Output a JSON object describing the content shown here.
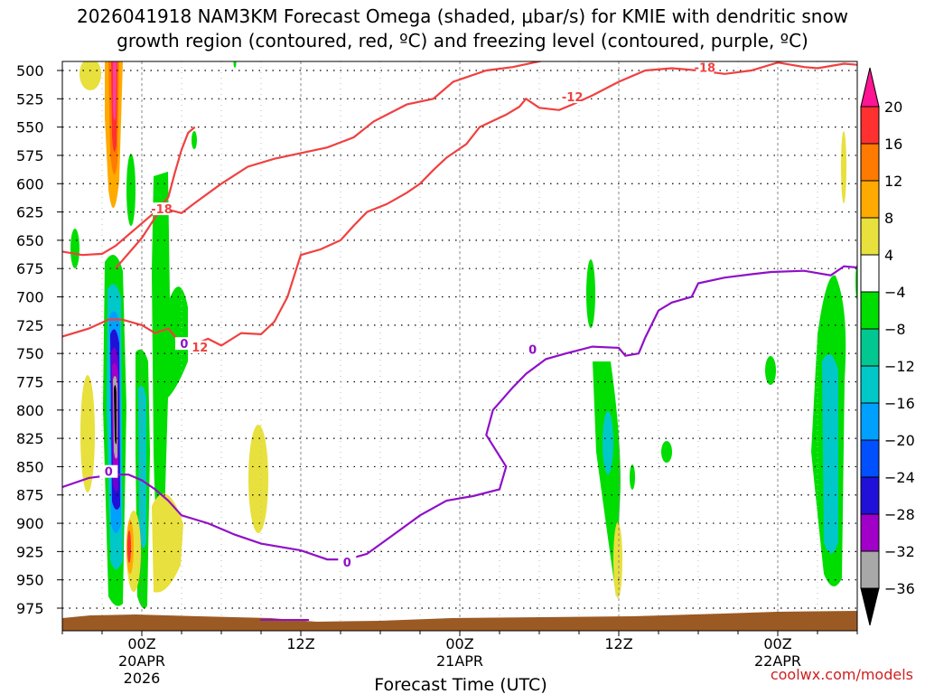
{
  "chart_data": {
    "type": "contour",
    "title_line1": "2026041918 NAM3KM Forecast Omega (shaded, μbar/s) for KMIE with dendritic snow",
    "title_line2": "growth region (contoured, red, ºC) and freezing level (contoured, purple, ºC)",
    "xlabel": "Forecast Time (UTC)",
    "brand": "coolwx.com/models",
    "y_axis": {
      "unit": "hPa",
      "ticks": [
        500,
        525,
        550,
        575,
        600,
        625,
        650,
        675,
        700,
        725,
        750,
        775,
        800,
        825,
        850,
        875,
        900,
        925,
        950,
        975
      ],
      "range": [
        500,
        985
      ]
    },
    "x_axis": {
      "unit": "hours from 2026-04-19 18Z",
      "range": [
        0,
        60
      ],
      "ticks": [
        {
          "hour": 6,
          "line1": "00Z",
          "line2": "20APR",
          "line3": "2026"
        },
        {
          "hour": 18,
          "line1": "12Z",
          "line2": "",
          "line3": ""
        },
        {
          "hour": 30,
          "line1": "00Z",
          "line2": "21APR",
          "line3": ""
        },
        {
          "hour": 42,
          "line1": "12Z",
          "line2": "",
          "line3": ""
        },
        {
          "hour": 54,
          "line1": "00Z",
          "line2": "22APR",
          "line3": ""
        }
      ]
    },
    "colorbar": {
      "labels": [
        "20",
        "16",
        "12",
        "8",
        "4",
        "−4",
        "−8",
        "−12",
        "−16",
        "−20",
        "−24",
        "−28",
        "−32",
        "−36"
      ],
      "colors": [
        "#e8ff00",
        "#ff3030",
        "#ff7a00",
        "#ffaa00",
        "#e6c000",
        "#e8e03c",
        "#ffffff",
        "#00dd00",
        "#00c890",
        "#00c8c8",
        "#00a0ff",
        "#0050ff",
        "#2010d8",
        "#7000d0",
        "#a000c8",
        "#a8a8a8",
        "#000000"
      ]
    },
    "series": [
      {
        "name": "-18",
        "color": "#f04040",
        "points": [
          [
            4.0,
            675
          ],
          [
            6.0,
            648
          ],
          [
            7.0,
            630
          ],
          [
            7.5,
            622
          ],
          [
            8.0,
            623
          ],
          [
            9.0,
            626
          ],
          [
            10.0,
            617
          ],
          [
            12.0,
            600
          ],
          [
            14.0,
            585
          ],
          [
            16.0,
            578
          ],
          [
            18.0,
            573
          ],
          [
            20.0,
            568
          ],
          [
            22.0,
            559
          ],
          [
            23.5,
            545
          ],
          [
            26.0,
            530
          ],
          [
            28.0,
            525
          ],
          [
            29.5,
            510
          ],
          [
            32.0,
            500
          ],
          [
            34.0,
            497
          ],
          [
            38.0,
            487
          ],
          [
            42.0,
            480
          ],
          [
            45.0,
            476
          ],
          [
            46.5,
            476
          ],
          [
            47.5,
            476
          ],
          [
            50.0,
            478
          ],
          [
            52.0,
            487
          ],
          [
            54.0,
            489
          ],
          [
            56.0,
            486
          ],
          [
            58.0,
            480
          ],
          [
            59.0,
            479
          ],
          [
            60.0,
            480
          ]
        ],
        "label": {
          "hour": 48.5,
          "hPa": 498,
          "text": "-18"
        },
        "label2": {
          "hour": 7.5,
          "hPa": 623,
          "text": "-18"
        }
      },
      {
        "name": "-12",
        "color": "#f04040",
        "points": [
          [
            0.0,
            660
          ],
          [
            1.5,
            663
          ],
          [
            3.0,
            662
          ],
          [
            4.0,
            655
          ],
          [
            5.5,
            640
          ],
          [
            7.0,
            625
          ],
          [
            8.0,
            612
          ],
          [
            8.5,
            590
          ],
          [
            9.0,
            570
          ],
          [
            9.5,
            555
          ],
          [
            10.0,
            550
          ]
        ],
        "label": {
          "hour": 0,
          "hPa": 0,
          "text": ""
        }
      },
      {
        "name": "-12b",
        "color": "#f04040",
        "points": [
          [
            0.0,
            735
          ],
          [
            2.0,
            728
          ],
          [
            3.5,
            720
          ],
          [
            4.5,
            720
          ],
          [
            6.0,
            725
          ],
          [
            7.0,
            732
          ],
          [
            8.0,
            728
          ],
          [
            9.0,
            742
          ],
          [
            10.0,
            742
          ],
          [
            11.0,
            737
          ],
          [
            12.0,
            743
          ],
          [
            13.5,
            732
          ],
          [
            15.0,
            733
          ],
          [
            16.0,
            722
          ],
          [
            17.0,
            700
          ],
          [
            18.0,
            663
          ],
          [
            19.5,
            658
          ],
          [
            21.0,
            650
          ],
          [
            22.0,
            637
          ],
          [
            23.0,
            625
          ],
          [
            24.5,
            618
          ],
          [
            26.0,
            608
          ],
          [
            27.0,
            600
          ],
          [
            28.0,
            588
          ],
          [
            29.0,
            577
          ],
          [
            30.5,
            565
          ],
          [
            31.5,
            550
          ],
          [
            33.5,
            539
          ],
          [
            34.5,
            532
          ],
          [
            35.0,
            525
          ],
          [
            36.0,
            533
          ],
          [
            37.5,
            535
          ],
          [
            38.5,
            530
          ],
          [
            40.0,
            522
          ],
          [
            42.0,
            510
          ],
          [
            44.0,
            500
          ],
          [
            46.0,
            498
          ],
          [
            48.0,
            500
          ],
          [
            50.0,
            503
          ],
          [
            52.0,
            500
          ],
          [
            54.0,
            493
          ],
          [
            56.0,
            497
          ],
          [
            57.0,
            498
          ],
          [
            58.0,
            496
          ],
          [
            59.0,
            494
          ],
          [
            60.0,
            495
          ]
        ],
        "label": {
          "hour": 38.5,
          "hPa": 524,
          "text": "-12"
        },
        "label2": {
          "hour": 10.2,
          "hPa": 745,
          "text": "-12"
        }
      },
      {
        "name": "0",
        "color": "#9010c8",
        "points": [
          [
            0.0,
            868
          ],
          [
            2.0,
            860
          ],
          [
            4.0,
            857
          ],
          [
            5.0,
            857
          ],
          [
            6.0,
            862
          ],
          [
            7.0,
            870
          ],
          [
            8.0,
            880
          ],
          [
            9.0,
            893
          ],
          [
            11.0,
            900
          ],
          [
            13.0,
            910
          ],
          [
            15.0,
            918
          ],
          [
            18.0,
            924
          ],
          [
            20.0,
            932
          ],
          [
            21.5,
            932
          ],
          [
            23.0,
            927
          ],
          [
            25.0,
            910
          ],
          [
            27.0,
            893
          ],
          [
            29.0,
            880
          ],
          [
            31.0,
            876
          ],
          [
            33.0,
            870
          ],
          [
            33.5,
            850
          ],
          [
            32.0,
            822
          ],
          [
            32.5,
            800
          ],
          [
            34.0,
            780
          ],
          [
            35.0,
            768
          ],
          [
            36.5,
            755
          ],
          [
            38.0,
            750
          ],
          [
            40.0,
            744
          ],
          [
            42.0,
            745
          ],
          [
            42.5,
            752
          ],
          [
            43.5,
            750
          ],
          [
            44.0,
            736
          ],
          [
            45.0,
            712
          ],
          [
            46.0,
            705
          ],
          [
            47.5,
            700
          ],
          [
            48.0,
            688
          ],
          [
            50.0,
            683
          ],
          [
            52.0,
            680
          ],
          [
            53.5,
            678
          ],
          [
            56.0,
            677
          ],
          [
            58.0,
            681
          ],
          [
            59.0,
            673
          ],
          [
            60.0,
            674
          ]
        ],
        "label": {
          "hour": 21.5,
          "hPa": 935,
          "text": "0"
        },
        "label2": {
          "hour": 35.5,
          "hPa": 747,
          "text": "0"
        },
        "label3": {
          "hour": 3.5,
          "hPa": 855,
          "text": "0"
        },
        "label4": {
          "hour": 9.2,
          "hPa": 742,
          "text": "0"
        }
      }
    ]
  }
}
